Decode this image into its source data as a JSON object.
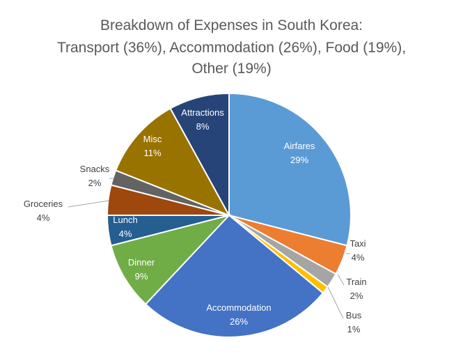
{
  "chart_data": {
    "type": "pie",
    "title_lines": [
      "Breakdown of Expenses in South Korea:",
      "Transport (36%), Accommodation (26%), Food (19%),",
      "Other (19%)"
    ],
    "slices": [
      {
        "label": "Airfares",
        "value_label": "29%",
        "value": 29,
        "color": "#5b9bd5",
        "label_placement": "inside",
        "label_color": "#ffffff"
      },
      {
        "label": "Taxi",
        "value_label": "4%",
        "value": 4,
        "color": "#ed7d31",
        "label_placement": "outside",
        "label_color": "#404040"
      },
      {
        "label": "Train",
        "value_label": "2%",
        "value": 2,
        "color": "#a5a5a5",
        "label_placement": "outside",
        "label_color": "#404040"
      },
      {
        "label": "Bus",
        "value_label": "1%",
        "value": 1,
        "color": "#ffc000",
        "label_placement": "outside",
        "label_color": "#404040"
      },
      {
        "label": "Accommodation",
        "value_label": "26%",
        "value": 26,
        "color": "#4472c4",
        "label_placement": "inside",
        "label_color": "#ffffff"
      },
      {
        "label": "Dinner",
        "value_label": "9%",
        "value": 9,
        "color": "#70ad47",
        "label_placement": "inside",
        "label_color": "#ffffff"
      },
      {
        "label": "Lunch",
        "value_label": "4%",
        "value": 4,
        "color": "#255e91",
        "label_placement": "inside",
        "label_color": "#ffffff"
      },
      {
        "label": "Groceries",
        "value_label": "4%",
        "value": 4,
        "color": "#9e480e",
        "label_placement": "outside",
        "label_color": "#404040"
      },
      {
        "label": "Snacks",
        "value_label": "2%",
        "value": 2,
        "color": "#636363",
        "label_placement": "outside",
        "label_color": "#404040"
      },
      {
        "label": "Misc",
        "value_label": "11%",
        "value": 11,
        "color": "#997300",
        "label_placement": "inside",
        "label_color": "#ffffff"
      },
      {
        "label": "Attractions",
        "value_label": "8%",
        "value": 8,
        "color": "#264478",
        "label_placement": "inside",
        "label_color": "#ffffff"
      }
    ],
    "start_angle_deg": 0,
    "direction": "clockwise",
    "legend": "none"
  }
}
